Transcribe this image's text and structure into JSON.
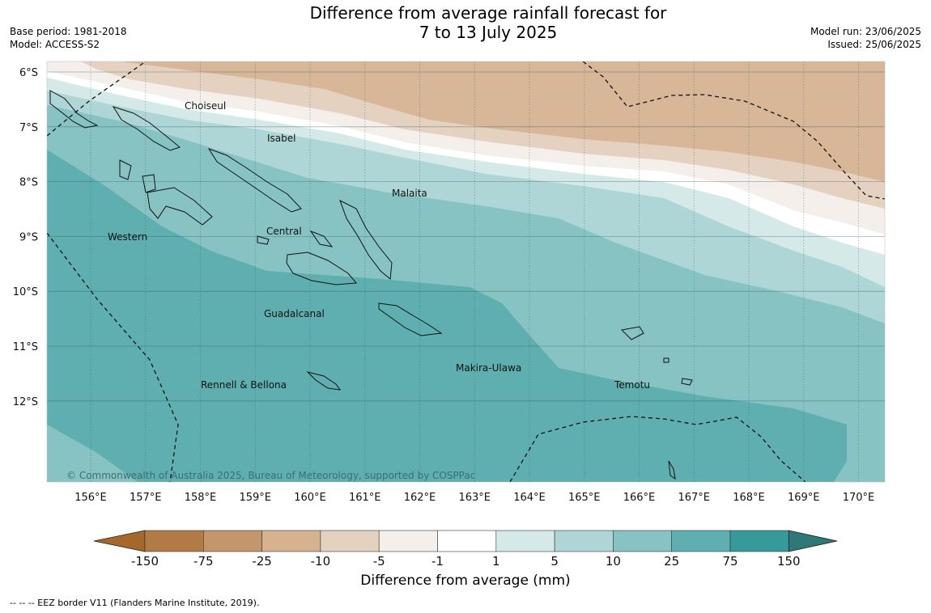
{
  "header": {
    "title_line1": "Difference from average rainfall forecast for",
    "title_line2": "7 to 13 July 2025",
    "base_period": "Base period: 1981-2018",
    "model": "Model: ACCESS-S2",
    "model_run": "Model run: 23/06/2025",
    "issued": "Issued: 25/06/2025"
  },
  "map": {
    "copyright": "© Commonwealth of Australia 2025, Bureau of Meteorology, supported by COSPPac",
    "lat_labels": [
      "6°S",
      "7°S",
      "8°S",
      "9°S",
      "10°S",
      "11°S",
      "12°S"
    ],
    "lon_labels": [
      "156°E",
      "157°E",
      "158°E",
      "159°E",
      "160°E",
      "161°E",
      "162°E",
      "163°E",
      "164°E",
      "165°E",
      "166°E",
      "167°E",
      "168°E",
      "169°E",
      "170°E"
    ],
    "province_labels": [
      {
        "id": "choiseul",
        "text": "Choiseul"
      },
      {
        "id": "isabel",
        "text": "Isabel"
      },
      {
        "id": "malaita",
        "text": "Malaita"
      },
      {
        "id": "western",
        "text": "Western"
      },
      {
        "id": "central",
        "text": "Central"
      },
      {
        "id": "guadalcanal",
        "text": "Guadalcanal"
      },
      {
        "id": "makira",
        "text": "Makira-Ulawa"
      },
      {
        "id": "rennell",
        "text": "Rennell & Bellona"
      },
      {
        "id": "temotu",
        "text": "Temotu"
      }
    ]
  },
  "colorbar": {
    "title": "Difference from average (mm)",
    "ticks": [
      "-150",
      "-75",
      "-25",
      "-10",
      "-5",
      "-1",
      "1",
      "5",
      "10",
      "25",
      "75",
      "150"
    ],
    "low_extend_color": "#a5672c",
    "high_extend_color": "#2f7878",
    "colors": [
      "#b27a45",
      "#c4966b",
      "#d6b290",
      "#e4d1c0",
      "#f4efea",
      "#ffffff",
      "#d5e9e9",
      "#aed6d6",
      "#87c3c3",
      "#5faeb0",
      "#369a9b"
    ]
  },
  "footer": {
    "eez": "--  --  -- EEZ border V11 (Flanders Marine Institute, 2019)."
  }
}
